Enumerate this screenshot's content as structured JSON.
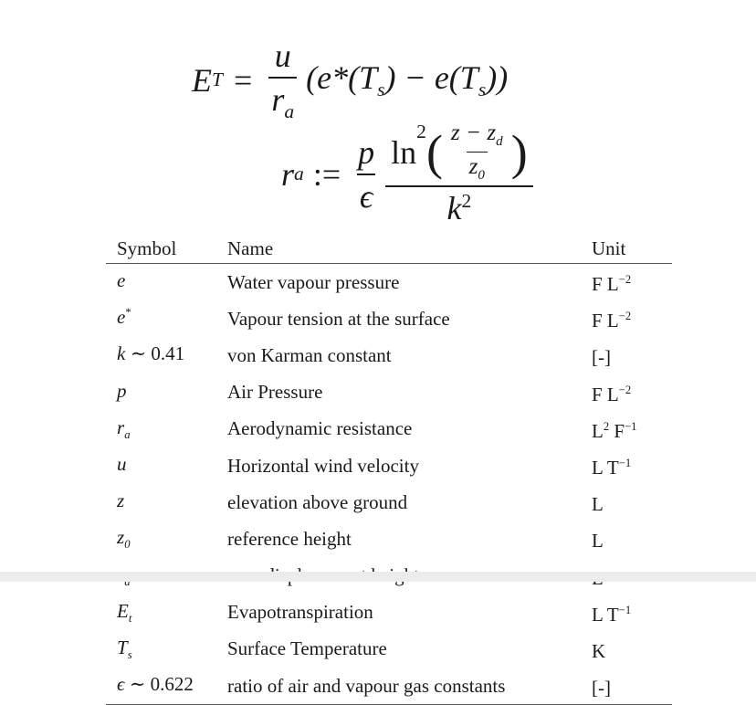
{
  "equation1": {
    "lhs": "E",
    "lhs_sub": "T",
    "eq": "=",
    "num": "u",
    "den": "r",
    "den_sub": "a",
    "rhs": "(e*(T",
    "rhs_sub1": "s",
    "rhs_mid": ") − e(T",
    "rhs_sub2": "s",
    "rhs_end": "))"
  },
  "equation2": {
    "lhs": "r",
    "lhs_sub": "a",
    "assign": ":=",
    "p": "p",
    "eps": "ϵ",
    "ln": "ln",
    "ln_pow": "2",
    "inner_num": "z − z",
    "inner_num_sub": "d",
    "inner_den": "z",
    "inner_den_sub": "0",
    "k": "k",
    "k_pow": "2"
  },
  "table": {
    "headers": [
      "Symbol",
      "Name",
      "Unit"
    ],
    "rows": [
      {
        "sym": "e",
        "sub": "",
        "sup": "",
        "tail": "",
        "name": "Water vapour pressure",
        "unit": "F L",
        "unit_sup": "−2",
        "unit2": "",
        "unit2_sup": ""
      },
      {
        "sym": "e",
        "sub": "",
        "sup": "*",
        "tail": "",
        "name": "Vapour tension at the surface",
        "unit": "F L",
        "unit_sup": "−2",
        "unit2": "",
        "unit2_sup": ""
      },
      {
        "sym": "k",
        "sub": "",
        "sup": "",
        "tail": " ∼ 0.41",
        "name": "von Karman constant",
        "unit": "[-]",
        "unit_sup": "",
        "unit2": "",
        "unit2_sup": ""
      },
      {
        "sym": "p",
        "sub": "",
        "sup": "",
        "tail": "",
        "name": "Air Pressure",
        "unit": "F L",
        "unit_sup": "−2",
        "unit2": "",
        "unit2_sup": ""
      },
      {
        "sym": "r",
        "sub": "a",
        "sup": "",
        "tail": "",
        "name": "Aerodynamic resistance",
        "unit": "L",
        "unit_sup": "2",
        "unit2": " F",
        "unit2_sup": "−1"
      },
      {
        "sym": "u",
        "sub": "",
        "sup": "",
        "tail": "",
        "name": "Horizontal wind velocity",
        "unit": "L T",
        "unit_sup": "−1",
        "unit2": "",
        "unit2_sup": ""
      },
      {
        "sym": "z",
        "sub": "",
        "sup": "",
        "tail": "",
        "name": "elevation above ground",
        "unit": "L",
        "unit_sup": "",
        "unit2": "",
        "unit2_sup": ""
      },
      {
        "sym": "z",
        "sub": "0",
        "sup": "",
        "tail": "",
        "name": "reference height",
        "unit": "L",
        "unit_sup": "",
        "unit2": "",
        "unit2_sup": ""
      },
      {
        "sym": "z",
        "sub": "a",
        "sup": "",
        "tail": "",
        "name": "zero displacement height",
        "unit": "L",
        "unit_sup": "",
        "unit2": "",
        "unit2_sup": ""
      },
      {
        "sym": "E",
        "sub": "t",
        "sup": "",
        "tail": "",
        "name": "Evapotranspiration",
        "unit": "L T",
        "unit_sup": "−1",
        "unit2": "",
        "unit2_sup": ""
      },
      {
        "sym": "T",
        "sub": "s",
        "sup": "",
        "tail": "",
        "name": "Surface Temperature",
        "unit": "K",
        "unit_sup": "",
        "unit2": "",
        "unit2_sup": ""
      },
      {
        "sym": "ϵ",
        "sub": "",
        "sup": "",
        "tail": " ∼ 0.622",
        "name": "ratio of air and vapour gas constants",
        "unit": "[-]",
        "unit_sup": "",
        "unit2": "",
        "unit2_sup": ""
      }
    ]
  }
}
